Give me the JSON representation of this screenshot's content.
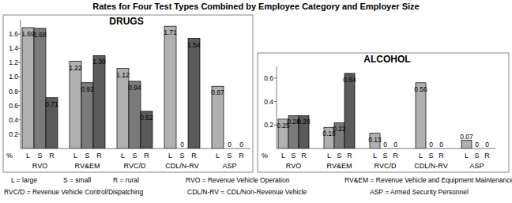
{
  "title": "Rates for Four Test Types Combined by Employee Category and Employer Size",
  "chart_data": [
    {
      "type": "bar",
      "title": "DRUGS",
      "y_label": "%",
      "categories": [
        "RVO",
        "RV&EM",
        "RVC/D",
        "CDL/N-RV",
        "ASP"
      ],
      "series": [
        {
          "name": "L",
          "color": "#b0b0b0",
          "values": [
            1.69,
            1.22,
            1.12,
            1.71,
            0.87
          ],
          "value_labels": [
            "1.69",
            "1.22",
            "1.12",
            "1.71",
            "0.87"
          ]
        },
        {
          "name": "S",
          "color": "#7a7a7a",
          "values": [
            1.68,
            0.92,
            0.94,
            0,
            0
          ],
          "value_labels": [
            "1.68",
            "0.92",
            "0.94",
            "0",
            "0"
          ]
        },
        {
          "name": "R",
          "color": "#5a5a5a",
          "values": [
            0.71,
            1.3,
            0.52,
            1.54,
            0
          ],
          "value_labels": [
            "0.71",
            "1.30",
            "0.52",
            "1.54",
            "0"
          ]
        }
      ],
      "ylim": [
        0,
        1.8
      ],
      "yticks": [
        0.2,
        0.4,
        0.6,
        0.8,
        {
          "value": 1,
          "label": "1.0"
        },
        1.2,
        1.4,
        1.6
      ],
      "grid": false,
      "data_labels": true
    },
    {
      "type": "bar",
      "title": "ALCOHOL",
      "y_label": "%",
      "categories": [
        "RVO",
        "RV&EM",
        "RVC/D",
        "CDL/N-RV",
        "ASP"
      ],
      "series": [
        {
          "name": "L",
          "color": "#b0b0b0",
          "values": [
            0.25,
            0.18,
            0.13,
            0.56,
            0.07
          ],
          "value_labels": [
            "0.25",
            "0.18",
            "0.13",
            "0.56",
            "0.07"
          ]
        },
        {
          "name": "S",
          "color": "#7a7a7a",
          "values": [
            0.28,
            0.22,
            0,
            0,
            0
          ],
          "value_labels": [
            "0.28",
            "0.22",
            "0",
            "0",
            "0"
          ]
        },
        {
          "name": "R",
          "color": "#5a5a5a",
          "values": [
            0.28,
            0.64,
            0,
            0,
            0
          ],
          "value_labels": [
            "0.28",
            "0.64",
            "0",
            "0",
            "0"
          ]
        }
      ],
      "ylim": [
        0,
        0.7
      ],
      "yticks": [
        0.2,
        0.4,
        0.6
      ],
      "grid": false,
      "data_labels": true
    }
  ],
  "notes": [
    "L = large",
    "S = small",
    "R = rural",
    "RVO = Revenue Vehicle Operation",
    "RV&EM = Revenue Vehicle and Equipment Maintenance",
    "RVC/D = Revenue Vehicle Control/Dispatching",
    "CDL/N-RV = CDL/Non-Revenue Vehicle",
    "ASP = Armed Security Personnel"
  ]
}
